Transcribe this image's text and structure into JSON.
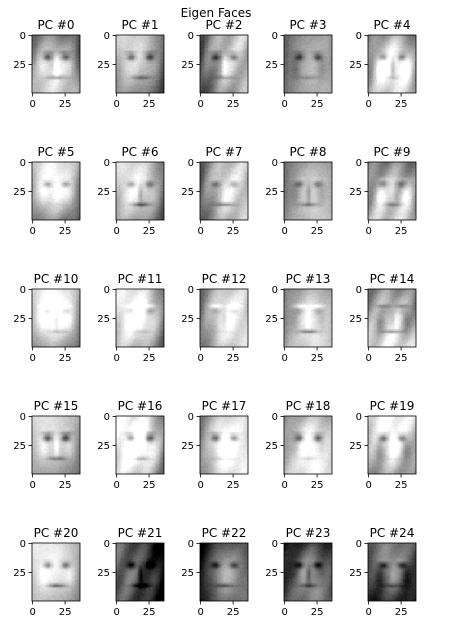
{
  "chart_data": {
    "type": "heatmap",
    "colormap": "gray",
    "title": "Eigen Faces",
    "grid": false,
    "image_shape": [
      50,
      37
    ],
    "x_ticks": [
      0,
      25
    ],
    "y_ticks": [
      0,
      25
    ],
    "panels": [
      {
        "title": "PC #0"
      },
      {
        "title": "PC #1"
      },
      {
        "title": "PC #2"
      },
      {
        "title": "PC #3"
      },
      {
        "title": "PC #4"
      },
      {
        "title": "PC #5"
      },
      {
        "title": "PC #6"
      },
      {
        "title": "PC #7"
      },
      {
        "title": "PC #8"
      },
      {
        "title": "PC #9"
      },
      {
        "title": "PC #10"
      },
      {
        "title": "PC #11"
      },
      {
        "title": "PC #12"
      },
      {
        "title": "PC #13"
      },
      {
        "title": "PC #14"
      },
      {
        "title": "PC #15"
      },
      {
        "title": "PC #16"
      },
      {
        "title": "PC #17"
      },
      {
        "title": "PC #18"
      },
      {
        "title": "PC #19"
      },
      {
        "title": "PC #20"
      },
      {
        "title": "PC #21"
      },
      {
        "title": "PC #22"
      },
      {
        "title": "PC #23"
      },
      {
        "title": "PC #24"
      }
    ]
  }
}
